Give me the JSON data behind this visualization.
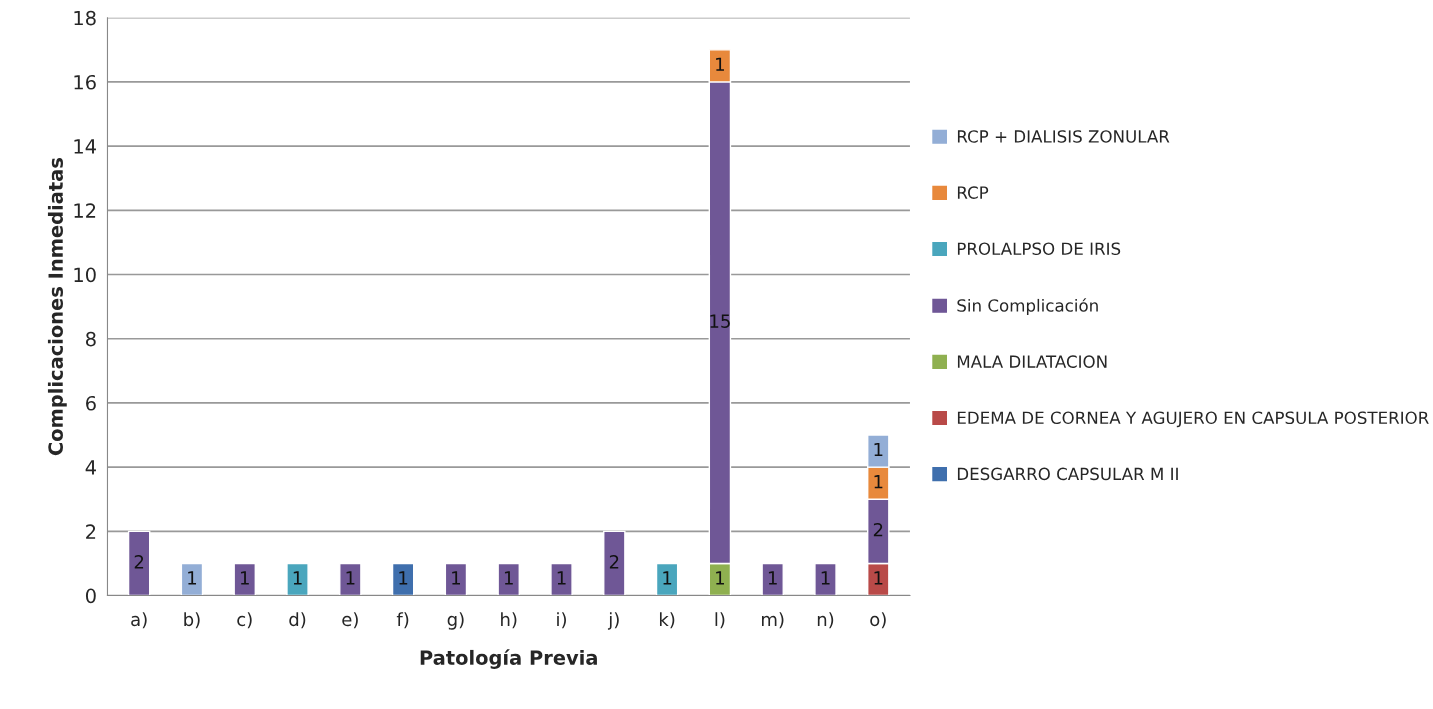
{
  "chart_data": {
    "type": "bar",
    "stacked": true,
    "xlabel": "Patología Previa",
    "ylabel": "Complicaciones Inmediatas",
    "categories": [
      "a)",
      "b)",
      "c)",
      "d)",
      "e)",
      "f)",
      "g)",
      "h)",
      "i)",
      "j)",
      "k)",
      "l)",
      "m)",
      "n)",
      "o)"
    ],
    "series": [
      {
        "name": "DESGARRO CAPSULAR M II",
        "color": "#3f6fad",
        "values": [
          null,
          null,
          null,
          null,
          null,
          1,
          null,
          null,
          null,
          null,
          null,
          null,
          null,
          null,
          null
        ]
      },
      {
        "name": "EDEMA DE CORNEA Y AGUJERO EN CAPSULA POSTERIOR",
        "color": "#b94a48",
        "values": [
          null,
          null,
          null,
          null,
          null,
          null,
          null,
          null,
          null,
          null,
          null,
          null,
          null,
          null,
          1
        ]
      },
      {
        "name": "MALA DILATACION",
        "color": "#8fb050",
        "values": [
          null,
          null,
          null,
          null,
          null,
          null,
          null,
          null,
          null,
          null,
          null,
          1,
          null,
          null,
          null
        ]
      },
      {
        "name": "Sin Complicación",
        "color": "#6f5796",
        "values": [
          2,
          null,
          1,
          null,
          1,
          null,
          1,
          1,
          1,
          2,
          null,
          15,
          1,
          1,
          2
        ]
      },
      {
        "name": "PROLALPSO DE IRIS",
        "color": "#4aa6bd",
        "values": [
          null,
          null,
          null,
          1,
          null,
          null,
          null,
          null,
          null,
          null,
          1,
          null,
          null,
          null,
          null
        ]
      },
      {
        "name": "RCP",
        "color": "#e8893c",
        "values": [
          null,
          null,
          null,
          null,
          null,
          null,
          null,
          null,
          null,
          null,
          null,
          1,
          null,
          null,
          1
        ]
      },
      {
        "name": "RCP + DIALISIS ZONULAR",
        "color": "#93aed6",
        "values": [
          null,
          1,
          null,
          null,
          null,
          null,
          null,
          null,
          null,
          null,
          null,
          null,
          null,
          null,
          1
        ]
      }
    ],
    "ylim": [
      0,
      18
    ],
    "yticks": [
      0,
      2,
      4,
      6,
      8,
      10,
      12,
      14,
      16,
      18
    ],
    "grid": "y",
    "legend": "right",
    "data_labels": true
  }
}
